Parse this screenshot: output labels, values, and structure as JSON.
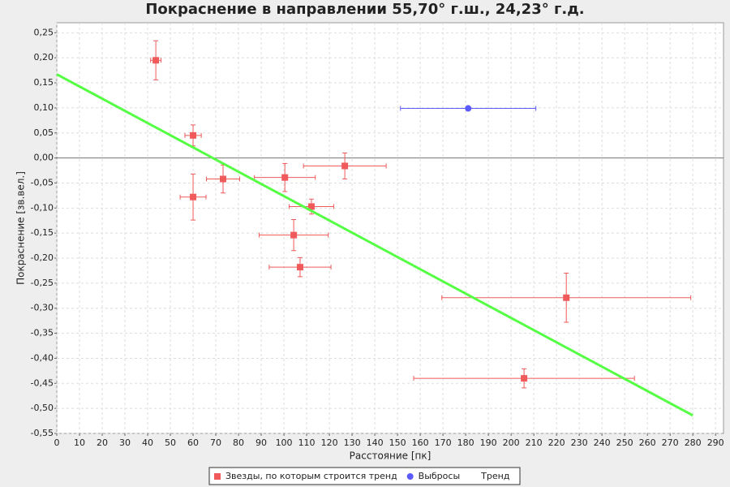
{
  "chart_data": {
    "type": "scatter",
    "title": "Покраснение в направлении 55,70° г.ш., 24,23° г.д.",
    "x_label": "Расстояние [пк]",
    "y_label": "Покраснение [зв.вел.]",
    "xlim": [
      0,
      293.5
    ],
    "ylim": [
      -0.55,
      0.27
    ],
    "xticks": [
      0,
      10,
      20,
      30,
      40,
      50,
      60,
      70,
      80,
      90,
      100,
      110,
      120,
      130,
      140,
      150,
      160,
      170,
      180,
      190,
      200,
      210,
      220,
      230,
      240,
      250,
      260,
      270,
      280,
      290
    ],
    "yticks": [
      {
        "value": 0.25,
        "label": "0,25"
      },
      {
        "value": 0.2,
        "label": "0,20"
      },
      {
        "value": 0.15,
        "label": "0,15"
      },
      {
        "value": 0.1,
        "label": "0,10"
      },
      {
        "value": 0.05,
        "label": "0,05"
      },
      {
        "value": 0,
        "label": "0,00"
      },
      {
        "value": -0.05,
        "label": "-0,05"
      },
      {
        "value": -0.1,
        "label": "-0,10"
      },
      {
        "value": -0.15,
        "label": "-0,15"
      },
      {
        "value": -0.2,
        "label": "-0,20"
      },
      {
        "value": -0.25,
        "label": "-0,25"
      },
      {
        "value": -0.3,
        "label": "-0,30"
      },
      {
        "value": -0.35,
        "label": "-0,35"
      },
      {
        "value": -0.4,
        "label": "-0,40"
      },
      {
        "value": -0.45,
        "label": "-0,45"
      },
      {
        "value": -0.5,
        "label": "-0,50"
      },
      {
        "value": -0.55,
        "label": "-0,55"
      }
    ],
    "grid": true,
    "legend": "bottom",
    "series": [
      {
        "name": "Звезды, по которым строится тренд",
        "color": "#f05a5a",
        "marker": "square",
        "x": [
          43.6,
          60,
          60,
          73.2,
          100.4,
          126.8,
          112.1,
          104.3,
          107.1,
          224.3,
          205.7
        ],
        "values": [
          0.195,
          0.045,
          -0.078,
          -0.042,
          -0.039,
          -0.016,
          -0.097,
          -0.154,
          -0.218,
          -0.279,
          -0.44
        ],
        "xerr": [
          2.3,
          3.6,
          5.7,
          7.3,
          13.4,
          18.2,
          9.8,
          15.2,
          13.6,
          54.8,
          48.6
        ],
        "yerr": [
          0.039,
          0.021,
          0.046,
          0.028,
          0.028,
          0.026,
          0.015,
          0.031,
          0.019,
          0.049,
          0.019
        ]
      },
      {
        "name": "Выбросы",
        "color": "#5a5aff",
        "marker": "circle",
        "x": [
          181.1
        ],
        "values": [
          0.099
        ],
        "xerr": [
          29.8
        ]
      },
      {
        "name": "Тренд",
        "color": "#55ff44",
        "marker": "line",
        "x": [
          0,
          280
        ],
        "values": [
          0.167,
          -0.514
        ]
      }
    ]
  }
}
